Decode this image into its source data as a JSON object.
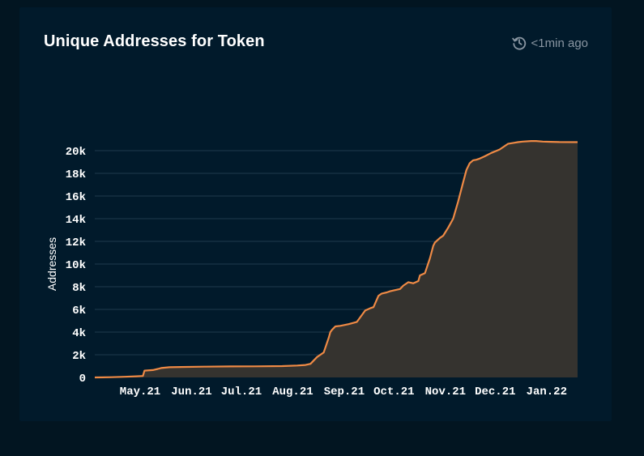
{
  "header": {
    "title": "Unique Addresses for Token",
    "updated": "<1min ago",
    "updated_icon": "clock-refresh-icon"
  },
  "colors": {
    "background": "#021521",
    "card": "#011a2b",
    "line": "#ef8a45",
    "area": "#35332f",
    "grid": "#1f3a4d",
    "text": "#ffffff",
    "muted": "#8a96a2"
  },
  "chart_data": {
    "type": "area",
    "ylabel": "Addresses",
    "xlabel": "",
    "ylim": [
      0,
      20000
    ],
    "yticks": [
      0,
      2000,
      4000,
      6000,
      8000,
      10000,
      12000,
      14000,
      16000,
      18000,
      20000
    ],
    "ytick_labels": [
      "0",
      "2k",
      "4k",
      "6k",
      "8k",
      "10k",
      "12k",
      "14k",
      "16k",
      "18k",
      "20k"
    ],
    "xlim": [
      "2021-04-10",
      "2022-01-26"
    ],
    "xticks": [
      "2021-05-01",
      "2021-06-01",
      "2021-07-01",
      "2021-08-01",
      "2021-09-01",
      "2021-10-01",
      "2021-11-01",
      "2021-12-01",
      "2022-01-01"
    ],
    "xtick_labels": [
      "May.21",
      "Jun.21",
      "Jul.21",
      "Aug.21",
      "Sep.21",
      "Oct.21",
      "Nov.21",
      "Dec.21",
      "Jan.22"
    ],
    "grid": true,
    "series": [
      {
        "x": [
          "2021-04-10",
          "2021-04-20",
          "2021-04-28",
          "2021-05-05",
          "2021-05-09",
          "2021-05-10",
          "2021-05-15",
          "2021-05-18",
          "2021-05-20",
          "2021-05-25",
          "2021-06-01",
          "2021-06-15",
          "2021-07-01",
          "2021-07-15",
          "2021-08-01",
          "2021-08-10",
          "2021-08-15",
          "2021-08-18",
          "2021-08-22",
          "2021-08-24",
          "2021-08-26",
          "2021-08-29",
          "2021-08-30",
          "2021-08-31",
          "2021-09-02",
          "2021-09-05",
          "2021-09-10",
          "2021-09-15",
          "2021-09-20",
          "2021-09-23",
          "2021-09-25",
          "2021-09-28",
          "2021-09-30",
          "2021-10-03",
          "2021-10-05",
          "2021-10-08",
          "2021-10-11",
          "2021-10-13",
          "2021-10-16",
          "2021-10-19",
          "2021-10-22",
          "2021-10-23",
          "2021-10-26",
          "2021-10-29",
          "2021-10-31",
          "2021-11-01",
          "2021-11-04",
          "2021-11-06",
          "2021-11-09",
          "2021-11-12",
          "2021-11-15",
          "2021-11-18",
          "2021-11-20",
          "2021-11-22",
          "2021-11-24",
          "2021-11-26",
          "2021-11-28",
          "2021-12-01",
          "2021-12-05",
          "2021-12-10",
          "2021-12-15",
          "2021-12-19",
          "2021-12-21",
          "2021-12-24",
          "2021-12-29",
          "2022-01-01",
          "2022-01-05",
          "2022-01-10",
          "2022-01-15",
          "2022-01-26"
        ],
        "values": [
          0,
          20,
          60,
          100,
          130,
          600,
          650,
          750,
          830,
          900,
          920,
          950,
          970,
          980,
          1000,
          1050,
          1100,
          1200,
          1800,
          2000,
          2200,
          3500,
          4000,
          4200,
          4500,
          4550,
          4700,
          4900,
          5900,
          6100,
          6200,
          7200,
          7400,
          7500,
          7600,
          7700,
          7800,
          8100,
          8400,
          8300,
          8500,
          9000,
          9200,
          10500,
          11600,
          11900,
          12300,
          12500,
          13200,
          14000,
          15500,
          17200,
          18300,
          18900,
          19150,
          19200,
          19300,
          19500,
          19800,
          20100,
          20600,
          20700,
          20750,
          20800,
          20850,
          20850,
          20800,
          20780,
          20760,
          20750
        ],
        "color": "#ef8a45"
      }
    ]
  }
}
